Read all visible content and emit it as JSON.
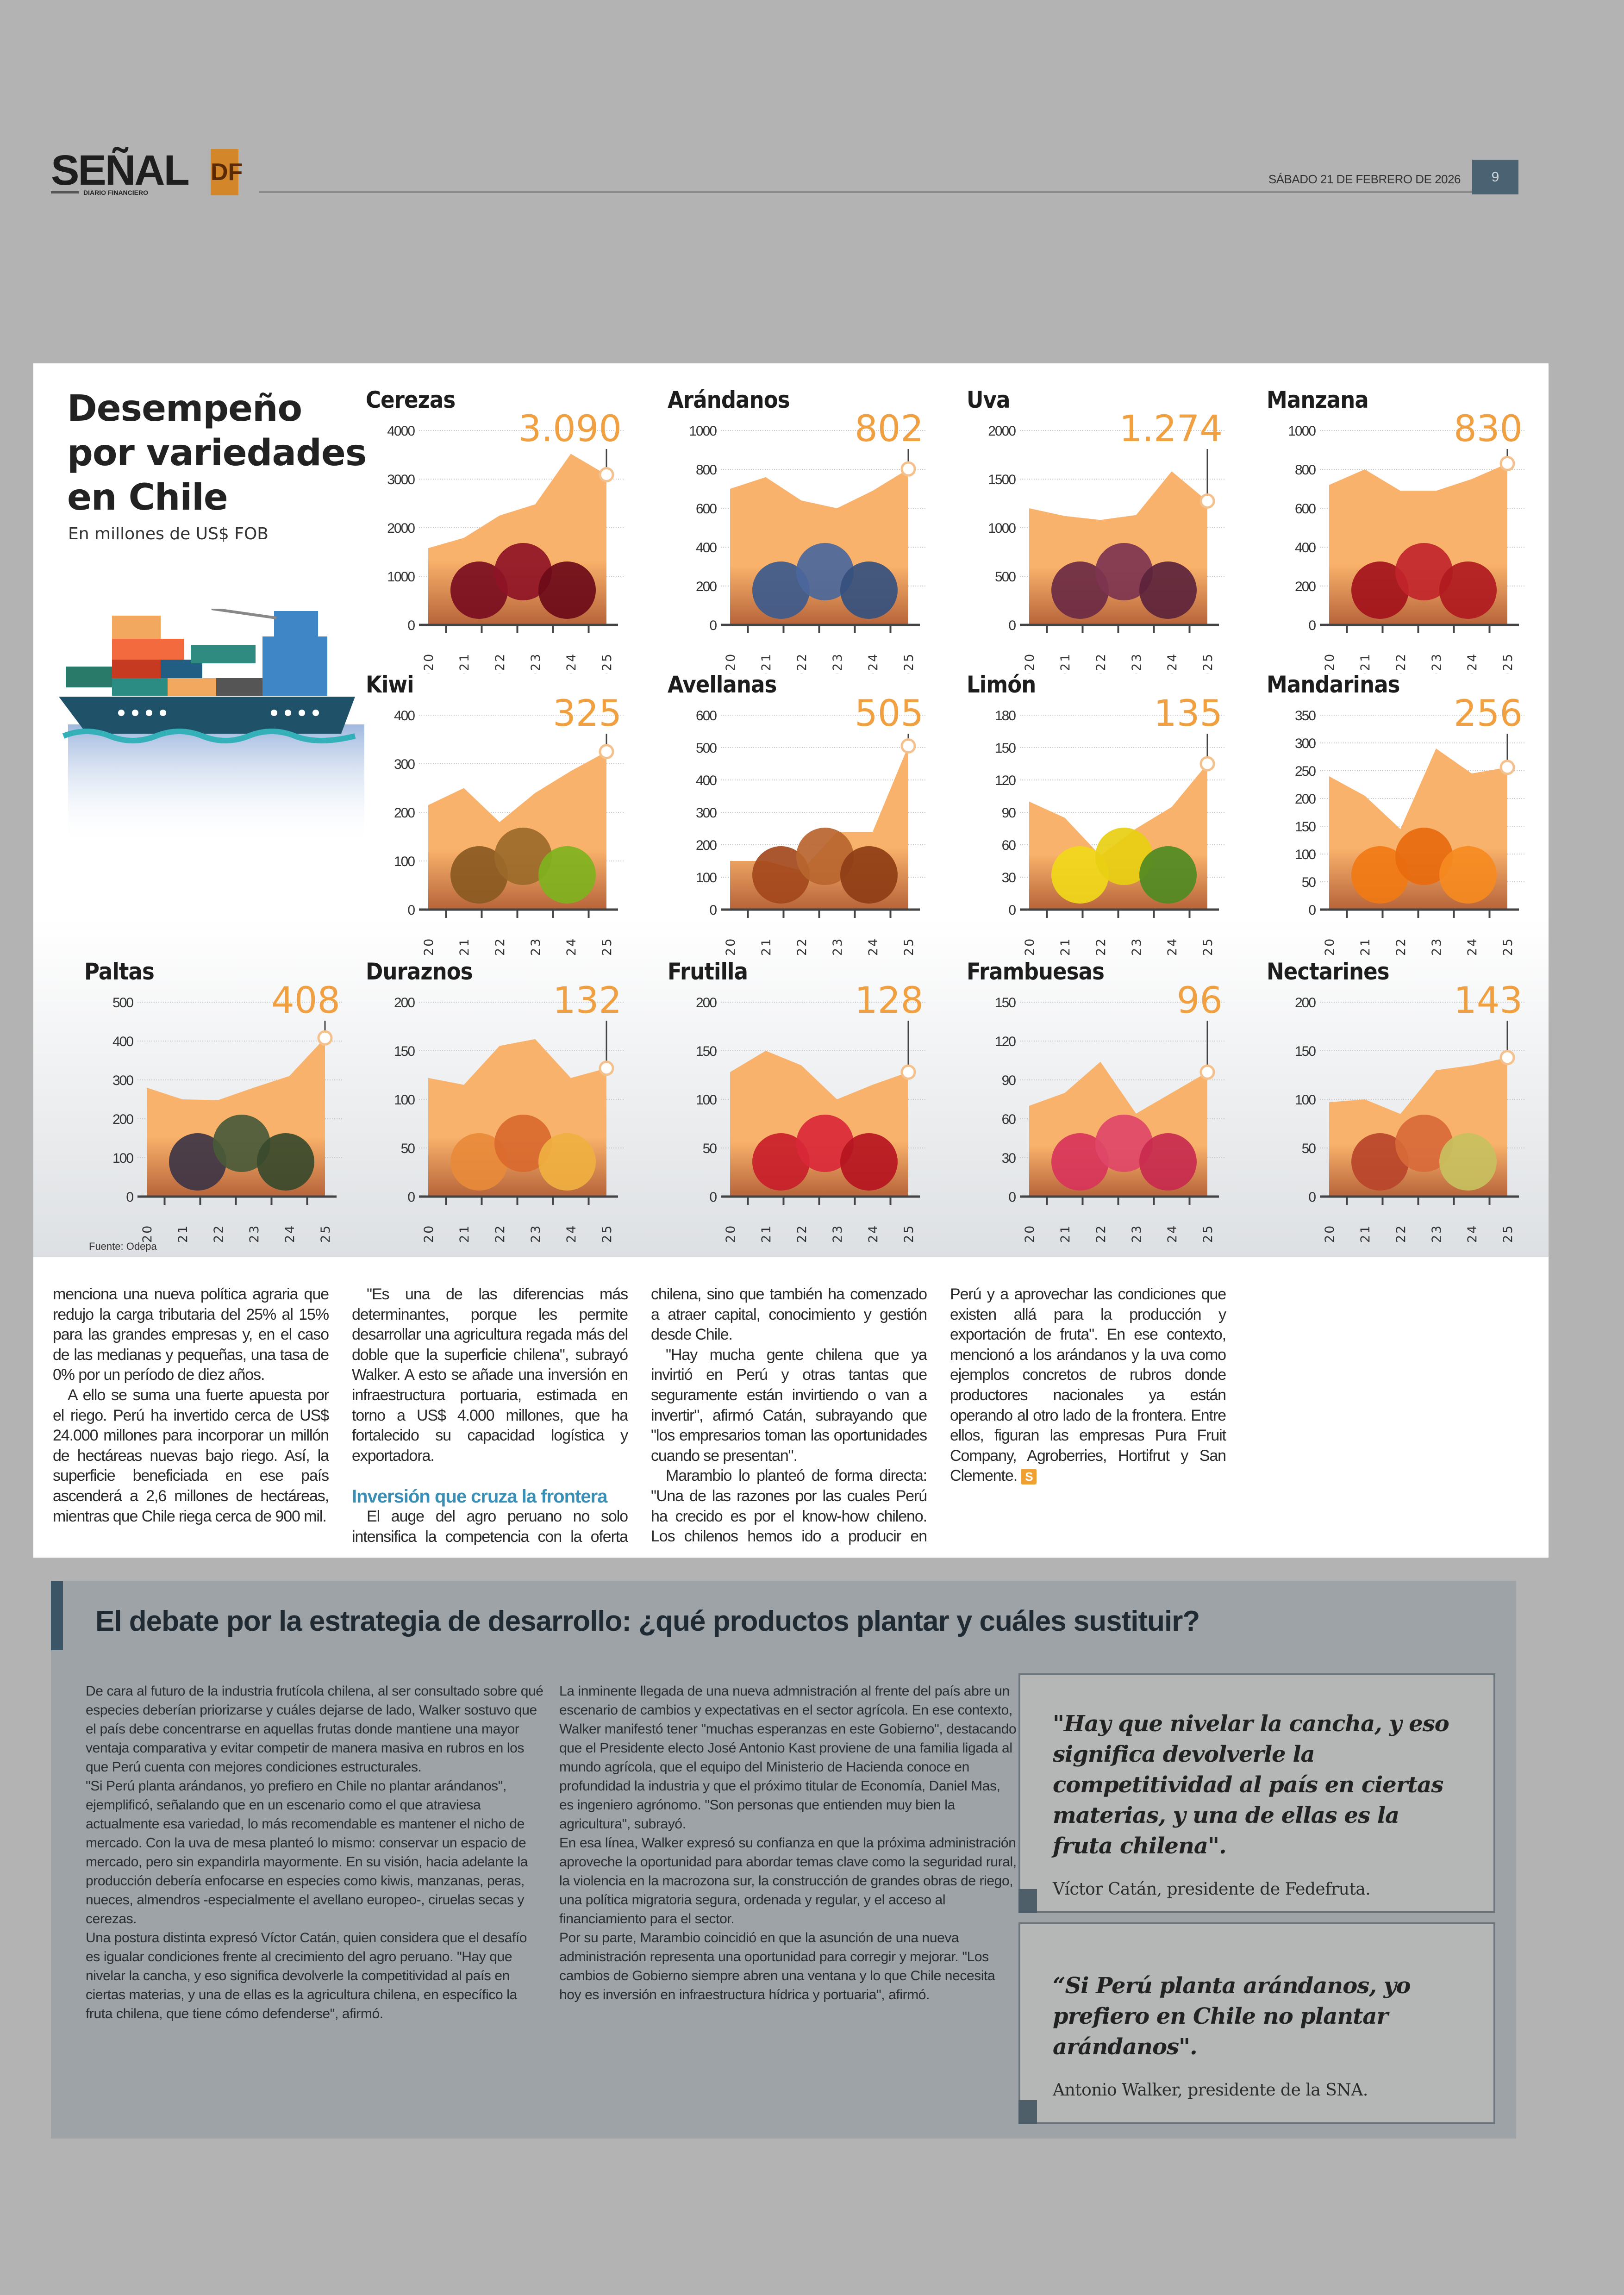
{
  "header": {
    "logo_word": "SEÑAL",
    "logo_badge": "DF",
    "logo_sub": "DIARIO FINANCIERO",
    "date": "SÁBADO 21 DE FEBRERO DE 2026",
    "page_number": "9",
    "accent_color": "#d4862a"
  },
  "infographic": {
    "title_lines": [
      "Desempeño",
      "por variedades",
      "en Chile"
    ],
    "subtitle": "En millones de US$ FOB",
    "source": "Fuente: Odepa",
    "illustration": "cargo-ship-icon",
    "area_color": "#f9b26b",
    "highlight_color": "#f0a040"
  },
  "chart_data": [
    {
      "type": "area",
      "title": "Cerezas",
      "value_label": "3.090",
      "x": [
        "2020",
        "2021",
        "2022",
        "2023",
        "2024",
        "2025"
      ],
      "values": [
        1580,
        1790,
        2250,
        2480,
        3520,
        3090
      ],
      "ylim": [
        0,
        4000
      ],
      "yticks": [
        0,
        1000,
        2000,
        3000,
        4000
      ],
      "ytick_labels": [
        "0",
        "1000",
        "2000",
        "3000",
        "4000"
      ],
      "fruit_colors": [
        "#7a0d1f",
        "#8e1426",
        "#6d0a18"
      ]
    },
    {
      "type": "area",
      "title": "Arándanos",
      "value_label": "802",
      "x": [
        "2020",
        "2021",
        "2022",
        "2023",
        "2024",
        "2025"
      ],
      "values": [
        700,
        760,
        640,
        600,
        690,
        802
      ],
      "ylim": [
        0,
        1000
      ],
      "yticks": [
        0,
        200,
        400,
        600,
        800,
        1000
      ],
      "ytick_labels": [
        "0",
        "200",
        "400",
        "600",
        "800",
        "1000"
      ],
      "fruit_colors": [
        "#3d5a8c",
        "#4a679b",
        "#35507e"
      ]
    },
    {
      "type": "area",
      "title": "Uva",
      "value_label": "1.274",
      "x": [
        "2020",
        "2021",
        "2022",
        "2023",
        "2024",
        "2025"
      ],
      "values": [
        1200,
        1120,
        1080,
        1130,
        1580,
        1274
      ],
      "ylim": [
        0,
        2000
      ],
      "yticks": [
        0,
        500,
        1000,
        1500,
        2000
      ],
      "ytick_labels": [
        "0",
        "500",
        "1000",
        "1500",
        "2000"
      ],
      "fruit_colors": [
        "#6b2a44",
        "#7d3450",
        "#5c233b"
      ]
    },
    {
      "type": "area",
      "title": "Manzana",
      "value_label": "830",
      "x": [
        "2020",
        "2021",
        "2022",
        "2023",
        "2024",
        "2025"
      ],
      "values": [
        720,
        800,
        690,
        690,
        750,
        830
      ],
      "ylim": [
        0,
        1000
      ],
      "yticks": [
        0,
        200,
        400,
        600,
        800,
        1000
      ],
      "ytick_labels": [
        "0",
        "200",
        "400",
        "600",
        "800",
        "1000"
      ],
      "fruit_colors": [
        "#a3121b",
        "#c2252b",
        "#b01a20"
      ]
    },
    {
      "type": "area",
      "title": "Kiwi",
      "value_label": "325",
      "x": [
        "2020",
        "2021",
        "2022",
        "2023",
        "2024",
        "2025"
      ],
      "values": [
        215,
        250,
        180,
        240,
        285,
        325
      ],
      "ylim": [
        0,
        400
      ],
      "yticks": [
        0,
        100,
        200,
        300,
        400
      ],
      "ytick_labels": [
        "0",
        "100",
        "200",
        "300",
        "400"
      ],
      "fruit_colors": [
        "#8a5a22",
        "#9b6a2a",
        "#7fb21e"
      ]
    },
    {
      "type": "area",
      "title": "Avellanas",
      "value_label": "505",
      "x": [
        "2020",
        "2021",
        "2022",
        "2023",
        "2024",
        "2025"
      ],
      "values": [
        150,
        150,
        120,
        240,
        240,
        505
      ],
      "ylim": [
        0,
        600
      ],
      "yticks": [
        0,
        100,
        200,
        300,
        400,
        500,
        600
      ],
      "ytick_labels": [
        "0",
        "100",
        "200",
        "300",
        "400",
        "500",
        "600"
      ],
      "fruit_colors": [
        "#a3481c",
        "#b9652f",
        "#8e3d15"
      ]
    },
    {
      "type": "area",
      "title": "Limón",
      "value_label": "135",
      "x": [
        "2020",
        "2021",
        "2022",
        "2023",
        "2024",
        "2025"
      ],
      "values": [
        100,
        85,
        50,
        75,
        95,
        135
      ],
      "ylim": [
        0,
        180
      ],
      "yticks": [
        0,
        30,
        60,
        90,
        120,
        150,
        180
      ],
      "ytick_labels": [
        "0",
        "30",
        "60",
        "90",
        "120",
        "150",
        "180"
      ],
      "fruit_colors": [
        "#f0d81a",
        "#e8cf12",
        "#4f8a22"
      ]
    },
    {
      "type": "area",
      "title": "Mandarinas",
      "value_label": "256",
      "x": [
        "2020",
        "2021",
        "2022",
        "2023",
        "2024",
        "2025"
      ],
      "values": [
        240,
        205,
        145,
        290,
        245,
        256
      ],
      "ylim": [
        0,
        350
      ],
      "yticks": [
        0,
        50,
        100,
        150,
        200,
        250,
        300,
        350
      ],
      "ytick_labels": [
        "0",
        "50",
        "100",
        "150",
        "200",
        "250",
        "300",
        "350"
      ],
      "fruit_colors": [
        "#f07a14",
        "#e86a0e",
        "#f58a20"
      ]
    },
    {
      "type": "area",
      "title": "Paltas",
      "value_label": "408",
      "x": [
        "2020",
        "2021",
        "2022",
        "2023",
        "2024",
        "2025"
      ],
      "values": [
        280,
        250,
        248,
        280,
        310,
        408
      ],
      "ylim": [
        0,
        500
      ],
      "yticks": [
        0,
        100,
        200,
        300,
        400,
        500
      ],
      "ytick_labels": [
        "0",
        "100",
        "200",
        "300",
        "400",
        "500"
      ],
      "fruit_colors": [
        "#3e3545",
        "#4a5a3a",
        "#384a2c"
      ]
    },
    {
      "type": "area",
      "title": "Duraznos",
      "value_label": "132",
      "x": [
        "2020",
        "2021",
        "2022",
        "2023",
        "2024",
        "2025"
      ],
      "values": [
        122,
        115,
        155,
        162,
        122,
        132
      ],
      "ylim": [
        0,
        200
      ],
      "yticks": [
        0,
        50,
        100,
        150,
        200
      ],
      "ytick_labels": [
        "0",
        "50",
        "100",
        "150",
        "200"
      ],
      "fruit_colors": [
        "#e88a3a",
        "#d9692e",
        "#f0b040"
      ]
    },
    {
      "type": "area",
      "title": "Frutilla",
      "value_label": "128",
      "x": [
        "2020",
        "2021",
        "2022",
        "2023",
        "2024",
        "2025"
      ],
      "values": [
        128,
        150,
        135,
        100,
        115,
        128
      ],
      "ylim": [
        0,
        200
      ],
      "yticks": [
        0,
        50,
        100,
        150,
        200
      ],
      "ytick_labels": [
        "0",
        "50",
        "100",
        "150",
        "200"
      ],
      "fruit_colors": [
        "#c81e2a",
        "#d9283a",
        "#b5151f"
      ]
    },
    {
      "type": "area",
      "title": "Frambuesas",
      "value_label": "96",
      "x": [
        "2020",
        "2021",
        "2022",
        "2023",
        "2024",
        "2025"
      ],
      "values": [
        70,
        80,
        104,
        64,
        80,
        96
      ],
      "ylim": [
        0,
        150
      ],
      "yticks": [
        0,
        30,
        60,
        90,
        120,
        150
      ],
      "ytick_labels": [
        "0",
        "30",
        "60",
        "90",
        "120",
        "150"
      ],
      "fruit_colors": [
        "#d8345a",
        "#e04668",
        "#c82a4e"
      ]
    },
    {
      "type": "area",
      "title": "Nectarines",
      "value_label": "143",
      "x": [
        "2020",
        "2021",
        "2022",
        "2023",
        "2024",
        "2025"
      ],
      "values": [
        97,
        100,
        85,
        130,
        135,
        143
      ],
      "ylim": [
        0,
        200
      ],
      "yticks": [
        0,
        50,
        100,
        150,
        200
      ],
      "ytick_labels": [
        "0",
        "50",
        "100",
        "150",
        "200"
      ],
      "fruit_colors": [
        "#b8442a",
        "#d86a3a",
        "#c8c060"
      ]
    }
  ],
  "article": {
    "paragraphs_before_heading": [
      "menciona una nueva política agraria que redujo la carga tributaria del 25% al 15% para las grandes empresas y, en el caso de las medianas y pequeñas, una tasa de 0% por un período de diez años.",
      "A ello se suma una fuerte apuesta por el riego. Perú ha invertido cerca de US$ 24.000 millones para incorporar un millón de hectáreas nuevas bajo riego. Así, la superficie beneficiada en ese país ascenderá a 2,6 millones de hectáreas, mientras que Chile riega cerca de 900 mil.",
      "\"Es una de las diferencias más determinantes, porque les permite desarrollar una agricultura regada más del doble que la superficie chilena\", subrayó Walker. A esto se añade una inversión en infraestructura portuaria, estimada en torno a US$ 4.000 millones, que ha fortalecido su capacidad logística y exportadora."
    ],
    "subheading": "Inversión que cruza la frontera",
    "paragraphs_after_heading": [
      "El auge del agro peruano no solo intensifica la competencia con la oferta chilena, sino que también ha comenzado a atraer capital, conocimiento y gestión desde Chile.",
      "\"Hay mucha gente chilena que ya invirtió en Perú y otras tantas que seguramente están invirtiendo o van a invertir\", afirmó Catán, subrayando que \"los empresarios toman las oportunidades cuando se presentan\".",
      "Marambio lo planteó de forma directa: \"Una de las razones por las cuales Perú ha crecido es por el know-how chileno. Los chilenos hemos ido a producir en Perú y a aprovechar las condiciones que existen allá para la producción y exportación de fruta\". En ese contexto, mencionó a los arándanos y la uva como ejemplos concretos de rubros donde productores nacionales ya están operando al otro lado de la frontera. Entre ellos, figuran las empresas Pura Fruit Company, Agroberries, Hortifrut y San Clemente."
    ],
    "end_mark": "S"
  },
  "sidebar_box": {
    "title": "El debate por la estrategia de desarrollo: ¿qué productos plantar y cuáles sustituir?",
    "column1": [
      "De cara al futuro de la industria frutícola chilena, al ser consultado sobre qué especies deberían priorizarse y cuáles dejarse de lado, Walker sostuvo que el país debe concentrarse en aquellas frutas donde mantiene una mayor ventaja comparativa y evitar competir de manera masiva en rubros en los que Perú cuenta con mejores condiciones estructurales.",
      "\"Si Perú planta arándanos, yo prefiero en Chile no plantar arándanos\", ejemplificó, señalando que en un escenario como el que atraviesa actualmente esa variedad, lo más recomendable es mantener el nicho de mercado. Con la uva de mesa planteó lo mismo: conservar un espacio de mercado, pero sin expandirla mayormente. En su visión, hacia adelante la producción debería enfocarse en especies como kiwis, manzanas, peras, nueces, almendros -especialmente el avellano europeo-, ciruelas secas y cerezas.",
      "Una postura distinta expresó Víctor Catán, quien considera que el desafío es igualar condiciones frente al crecimiento del agro peruano. \"Hay que nivelar la cancha, y eso significa devolverle la competitividad al país en ciertas materias, y una de ellas es la agricultura chilena, en específico la fruta chilena, que tiene cómo defenderse\", afirmó."
    ],
    "column2": [
      "La inminente llegada de una nueva admnistración al frente del país abre un escenario de cambios y expectativas en el sector agrícola. En ese contexto, Walker manifestó tener \"muchas esperanzas en este Gobierno\", destacando que el Presidente electo José Antonio Kast proviene de una familia ligada al mundo agrícola, que el equipo del Ministerio de Hacienda conoce en profundidad la industria y que el próximo titular de Economía, Daniel Mas, es ingeniero agrónomo. \"Son personas que entienden muy bien la agricultura\", subrayó.",
      "En esa línea, Walker expresó su confianza en que la próxima administración aproveche la oportunidad para abordar temas clave como la seguridad rural, la violencia en la macrozona sur, la construcción de grandes obras de riego, una política migratoria segura, ordenada y regular, y el acceso al financiamiento para el sector.",
      "Por su parte, Marambio coincidió en que la asunción de una nueva administración representa una oportunidad para corregir y mejorar. \"Los cambios de Gobierno siempre abren una ventana y lo que Chile necesita hoy es inversión en infraestructura hídrica y portuaria\", afirmó."
    ],
    "quotes": [
      {
        "text": "\"Hay que nivelar la cancha, y eso significa devolverle la competitividad al país en ciertas materias, y una de ellas es la fruta chilena\".",
        "attribution": "Víctor Catán, presidente de Fedefruta."
      },
      {
        "text": "“Si Perú planta arándanos, yo prefiero en Chile no plantar arándanos\".",
        "attribution": "Antonio Walker, presidente de la SNA."
      }
    ]
  }
}
